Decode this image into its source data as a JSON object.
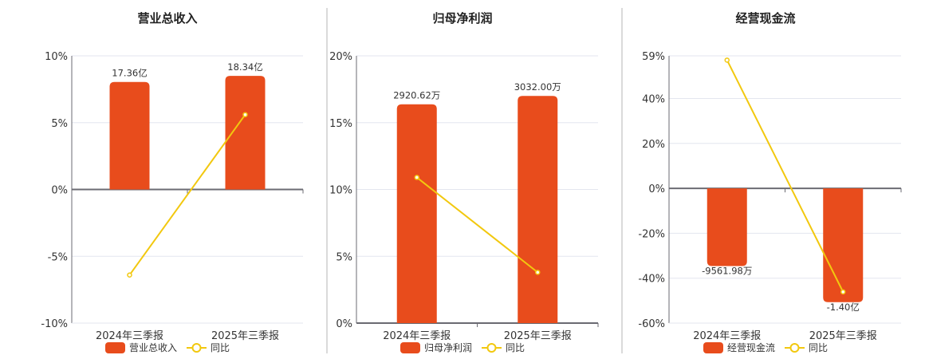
{
  "colors": {
    "bar": "#E84C1C",
    "line": "#F2C80F",
    "grid": "#E3E6EF",
    "axis": "#6B6B73",
    "separator": "#B5B5B5"
  },
  "chart_data": [
    {
      "type": "bar+line",
      "title": "营业总收入",
      "categories": [
        "2024年三季报",
        "2025年三季报"
      ],
      "yticks": [
        "10%",
        "5%",
        "0%",
        "-5%",
        "-10%"
      ],
      "ylim": [
        -10,
        10
      ],
      "tick_values": [
        10,
        5,
        0,
        -5,
        -10
      ],
      "grid": true,
      "legend": "bottom",
      "series": [
        {
          "name": "营业总收入",
          "kind": "bar",
          "values_yi": [
            17.36,
            18.34
          ],
          "labels": [
            "17.36亿",
            "18.34亿"
          ]
        },
        {
          "name": "同比",
          "kind": "line",
          "values_pct": [
            -6.4,
            5.6
          ]
        }
      ]
    },
    {
      "type": "bar+line",
      "title": "归母净利润",
      "categories": [
        "2024年三季报",
        "2025年三季报"
      ],
      "yticks": [
        "20%",
        "15%",
        "10%",
        "5%",
        "0%"
      ],
      "ylim": [
        0,
        20
      ],
      "tick_values": [
        20,
        15,
        10,
        5,
        0
      ],
      "grid": true,
      "legend": "bottom",
      "series": [
        {
          "name": "归母净利润",
          "kind": "bar",
          "values_yi": [
            0.292062,
            0.3032
          ],
          "labels": [
            "2920.62万",
            "3032.00万"
          ]
        },
        {
          "name": "同比",
          "kind": "line",
          "values_pct": [
            10.9,
            3.8
          ]
        }
      ]
    },
    {
      "type": "bar+line",
      "title": "经营现金流",
      "categories": [
        "2024年三季报",
        "2025年三季报"
      ],
      "yticks": [
        "59%",
        "40%",
        "20%",
        "0%",
        "-20%",
        "-40%",
        "-60%"
      ],
      "ylim": [
        -60,
        59
      ],
      "tick_values": [
        59,
        40,
        20,
        0,
        -20,
        -40,
        -60
      ],
      "grid": true,
      "legend": "bottom",
      "series": [
        {
          "name": "经营现金流",
          "kind": "bar",
          "values_yi": [
            -0.956198,
            -1.4
          ],
          "labels": [
            "-9561.98万",
            "-1.40亿"
          ]
        },
        {
          "name": "同比",
          "kind": "line",
          "values_pct": [
            57.1,
            -46.1
          ]
        }
      ]
    }
  ]
}
